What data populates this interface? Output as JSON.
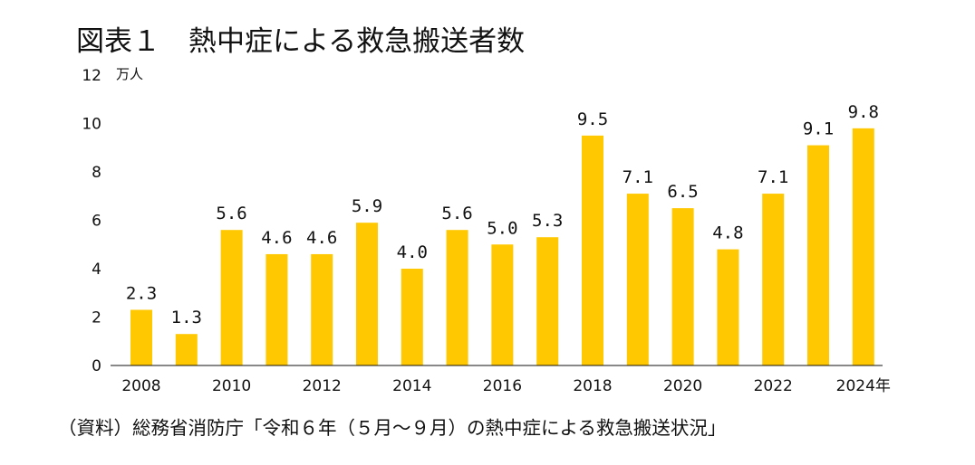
{
  "title": "図表１　熱中症による救急搬送者数",
  "source": "（資料）総務省消防庁「令和６年（５月～９月）の熱中症による救急搬送状況」",
  "colors": {
    "bar": "#FFC800",
    "axis": "#111111",
    "text": "#111111"
  },
  "chart_data": {
    "type": "bar",
    "title": "図表１　熱中症による救急搬送者数",
    "ylabel": "万人",
    "xlabel": "",
    "ylim": [
      0,
      12
    ],
    "yticks": [
      "0",
      "2",
      "4",
      "6",
      "8",
      "10",
      "12"
    ],
    "grid": false,
    "categories": [
      "2008",
      "2009",
      "2010",
      "2011",
      "2012",
      "2013",
      "2014",
      "2015",
      "2016",
      "2017",
      "2018",
      "2019",
      "2020",
      "2021",
      "2022",
      "2023",
      "2024"
    ],
    "xtick_labels": [
      "2008",
      "",
      "2010",
      "",
      "2012",
      "",
      "2014",
      "",
      "2016",
      "",
      "2018",
      "",
      "2020",
      "",
      "2022",
      "",
      "2024年"
    ],
    "values": [
      2.3,
      1.3,
      5.6,
      4.6,
      4.6,
      5.9,
      4.0,
      5.6,
      5.0,
      5.3,
      9.5,
      7.1,
      6.5,
      4.8,
      7.1,
      9.1,
      9.8
    ],
    "data_labels": [
      "2.3",
      "1.3",
      "5.6",
      "4.6",
      "4.6",
      "5.9",
      "4.0",
      "5.6",
      "5.0",
      "5.3",
      "9.5",
      "7.1",
      "6.5",
      "4.8",
      "7.1",
      "9.1",
      "9.8"
    ]
  }
}
